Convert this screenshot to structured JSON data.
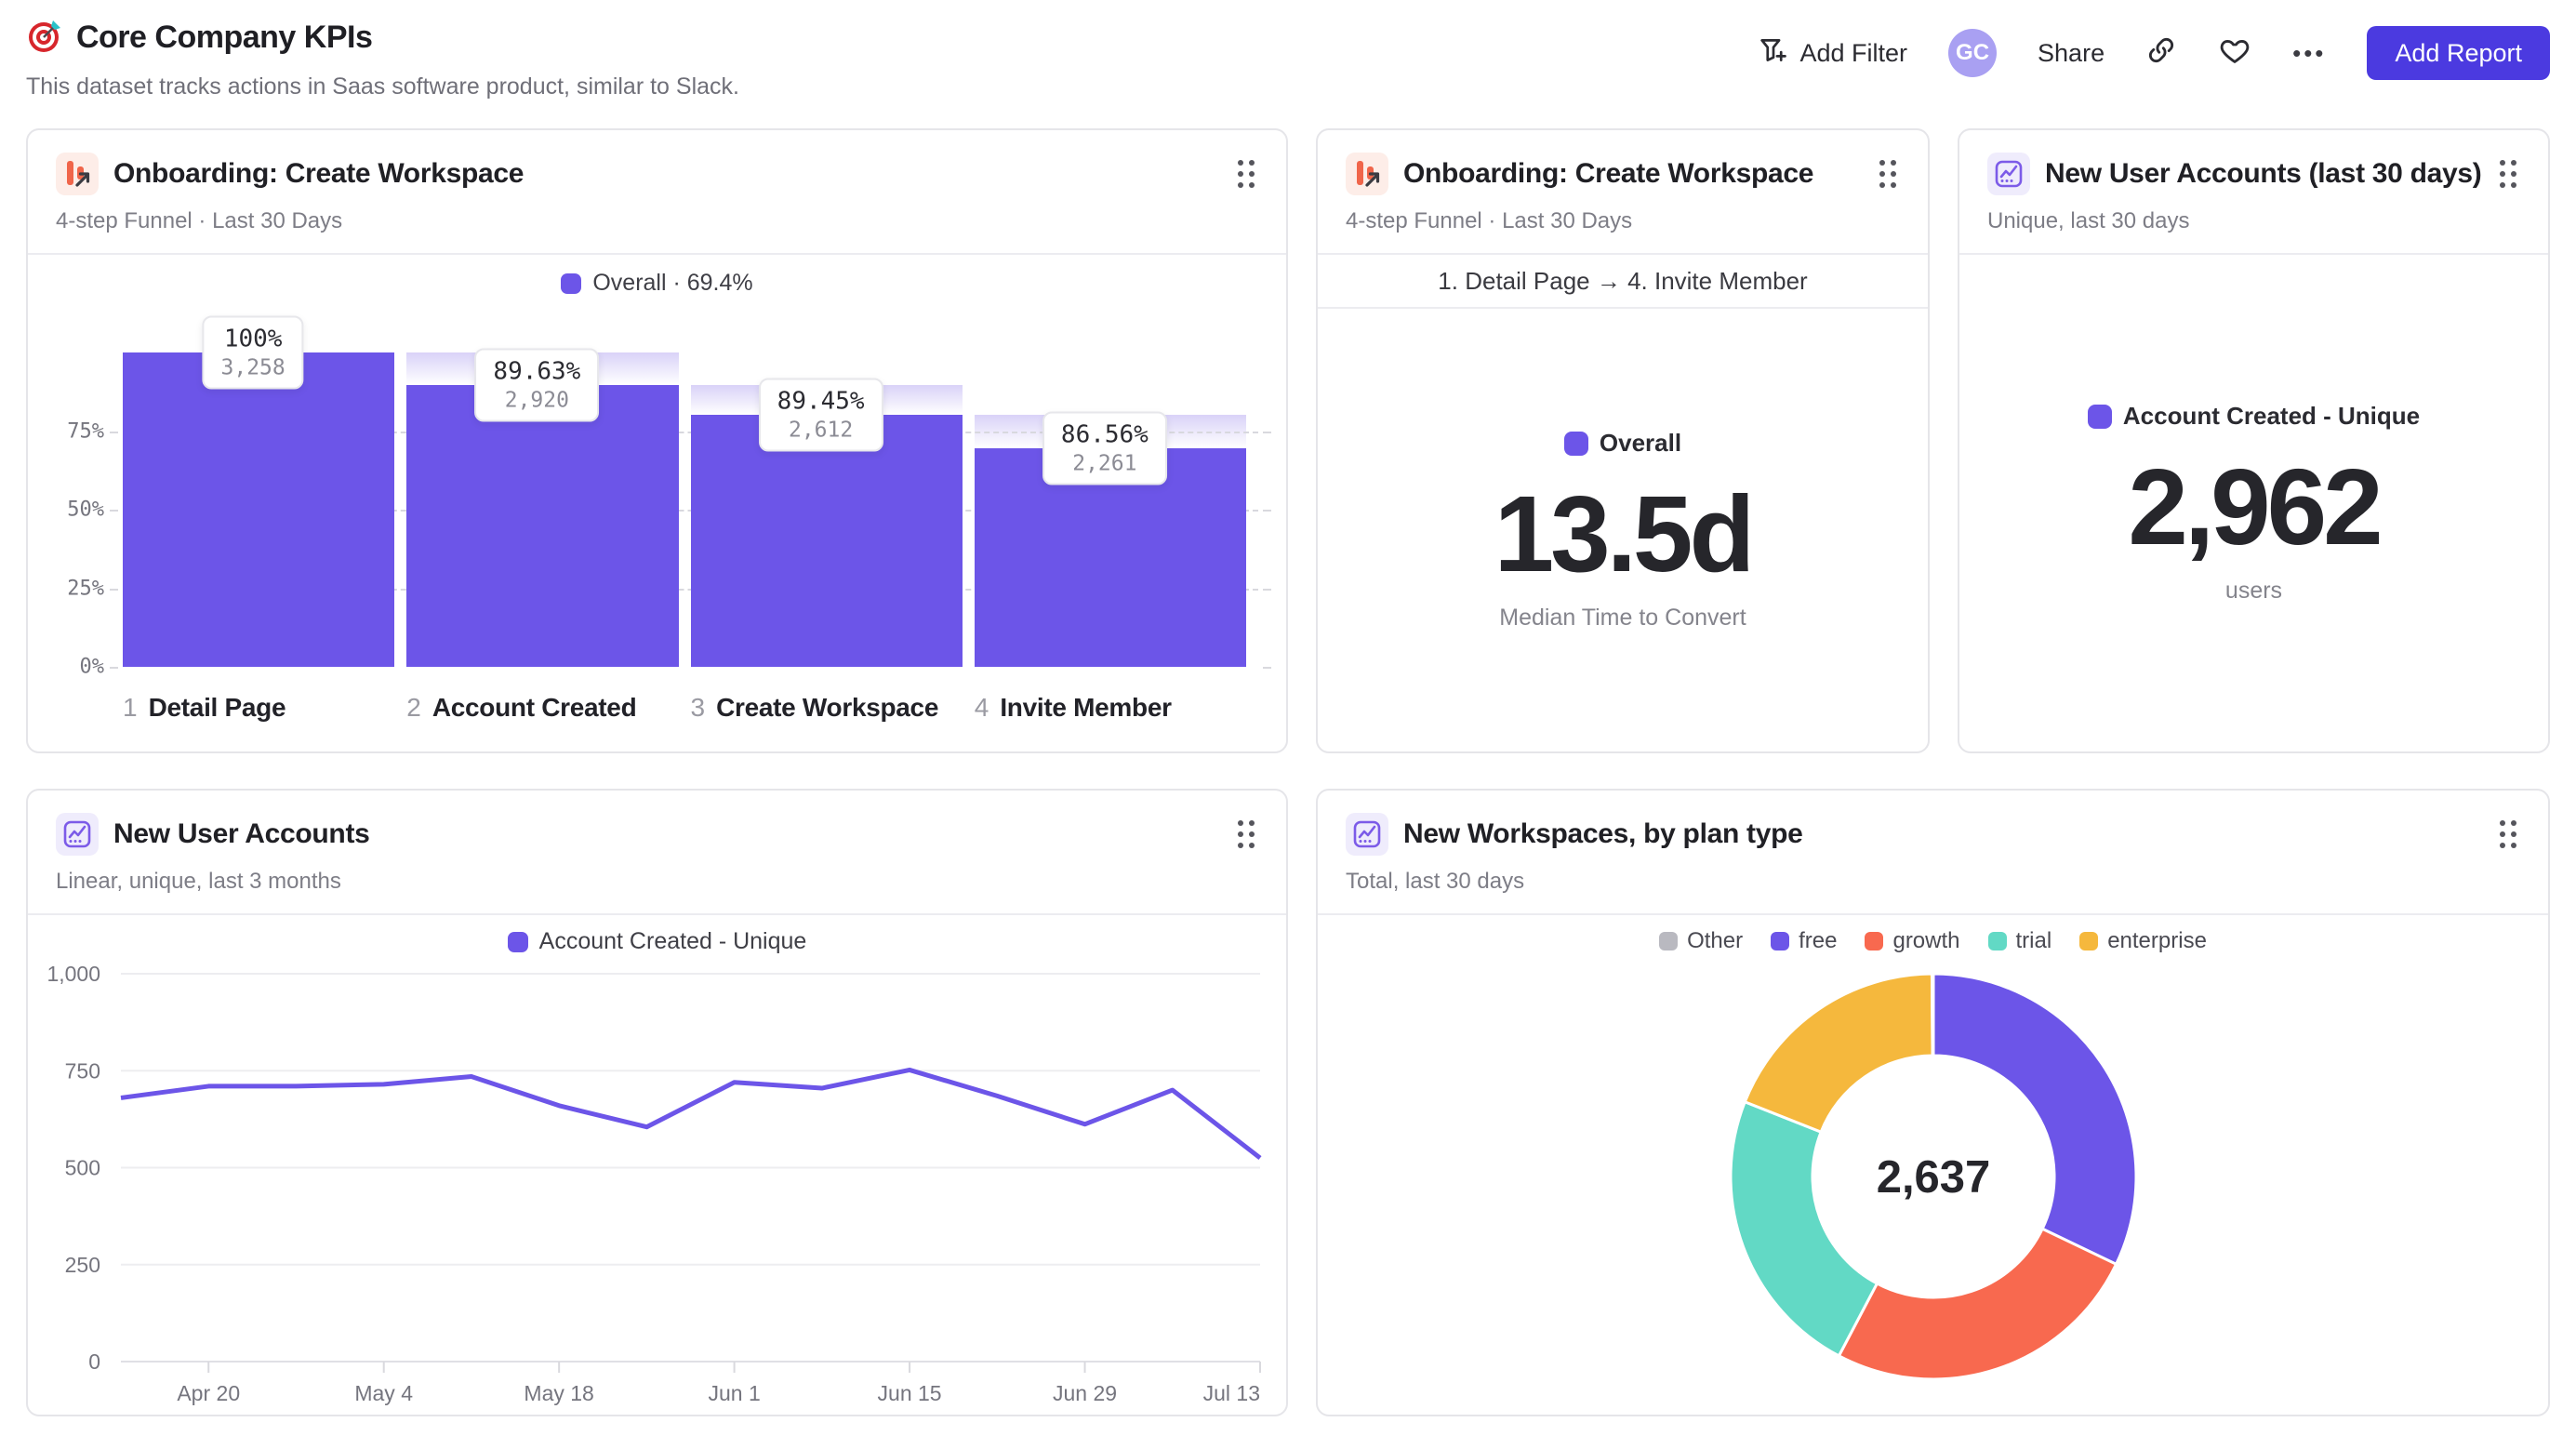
{
  "header": {
    "title": "Core Company KPIs",
    "subtitle": "This dataset tracks actions in Saas software product, similar to Slack.",
    "actions": {
      "add_filter": "Add Filter",
      "avatar": "GC",
      "share": "Share",
      "more": "•••",
      "add_report": "Add Report"
    }
  },
  "cards": {
    "funnel": {
      "title": "Onboarding: Create Workspace",
      "subtitle": "4-step Funnel · Last 30 Days",
      "legend": "Overall · 69.4%"
    },
    "time_to_convert": {
      "title": "Onboarding: Create Workspace",
      "subtitle": "4-step Funnel · Last 30 Days",
      "range": "1. Detail Page → 4. Invite Member",
      "legend": "Overall",
      "value": "13.5d",
      "caption": "Median Time to Convert"
    },
    "new_accounts_total": {
      "title": "New User Accounts (last 30 days)",
      "subtitle": "Unique, last 30 days",
      "legend": "Account Created - Unique",
      "value": "2,962",
      "caption": "users"
    },
    "new_accounts_trend": {
      "title": "New User Accounts",
      "subtitle": "Linear, unique, last 3 months",
      "legend": "Account Created - Unique"
    },
    "workspaces_by_plan": {
      "title": "New Workspaces, by plan type",
      "subtitle": "Total, last 30 days"
    }
  },
  "colors": {
    "accent_purple": "#6C55E8",
    "button_indigo": "#4B3AE0",
    "coral": "#F8694F",
    "teal": "#62D9C5",
    "yellow": "#F5B83D",
    "grey_swatch": "#B9B9C0"
  },
  "chart_data": [
    {
      "type": "bar",
      "title": "Onboarding: Create Workspace — 4-step funnel",
      "legend": "Overall · 69.4%",
      "categories": [
        "Detail Page",
        "Account Created",
        "Create Workspace",
        "Invite Member"
      ],
      "step_numbers": [
        "1",
        "2",
        "3",
        "4"
      ],
      "values": [
        3258,
        2920,
        2612,
        2261
      ],
      "value_labels": [
        "3,258",
        "2,920",
        "2,612",
        "2,261"
      ],
      "pct_labels": [
        "100%",
        "89.63%",
        "89.45%",
        "86.56%"
      ],
      "pct_of_first": [
        100,
        89.63,
        80.17,
        69.4
      ],
      "overall_conversion": "69.4%",
      "yticks": [
        {
          "label": "75%",
          "v": 75
        },
        {
          "label": "50%",
          "v": 50
        },
        {
          "label": "25%",
          "v": 25
        },
        {
          "label": "0%",
          "v": 0
        }
      ],
      "ylim": [
        0,
        100
      ],
      "bar_color": "#6C55E8"
    },
    {
      "type": "line",
      "title": "New User Accounts — linear, unique, last 3 months",
      "series": [
        {
          "name": "Account Created - Unique",
          "values": [
            680,
            710,
            710,
            715,
            735,
            660,
            605,
            720,
            705,
            752,
            685,
            612,
            700,
            525
          ]
        }
      ],
      "x_labels": [
        "Apr 20",
        "May 4",
        "May 18",
        "Jun 1",
        "Jun 15",
        "Jun 29",
        "Jul 13"
      ],
      "label_start_index": 1,
      "label_every": 2,
      "yticks": [
        0,
        250,
        500,
        750,
        1000
      ],
      "ytick_labels": [
        "0",
        "250",
        "500",
        "750",
        "1,000"
      ],
      "ylim": [
        0,
        1000
      ],
      "color": "#6C55E8"
    },
    {
      "type": "pie",
      "title": "New Workspaces, by plan type",
      "center_label": "2,637",
      "total": 2637,
      "slices": [
        {
          "label": "free",
          "value": 847,
          "color": "#6C55E8"
        },
        {
          "label": "growth",
          "value": 675,
          "color": "#F8694F"
        },
        {
          "label": "trial",
          "value": 614,
          "color": "#62D9C5"
        },
        {
          "label": "enterprise",
          "value": 498,
          "color": "#F5B83D"
        },
        {
          "label": "Other",
          "value": 3,
          "color": "#B9B9C0"
        }
      ],
      "legend": [
        {
          "label": "Other",
          "color": "#B9B9C0"
        },
        {
          "label": "free",
          "color": "#6C55E8"
        },
        {
          "label": "growth",
          "color": "#F8694F"
        },
        {
          "label": "trial",
          "color": "#62D9C5"
        },
        {
          "label": "enterprise",
          "color": "#F5B83D"
        }
      ]
    }
  ]
}
